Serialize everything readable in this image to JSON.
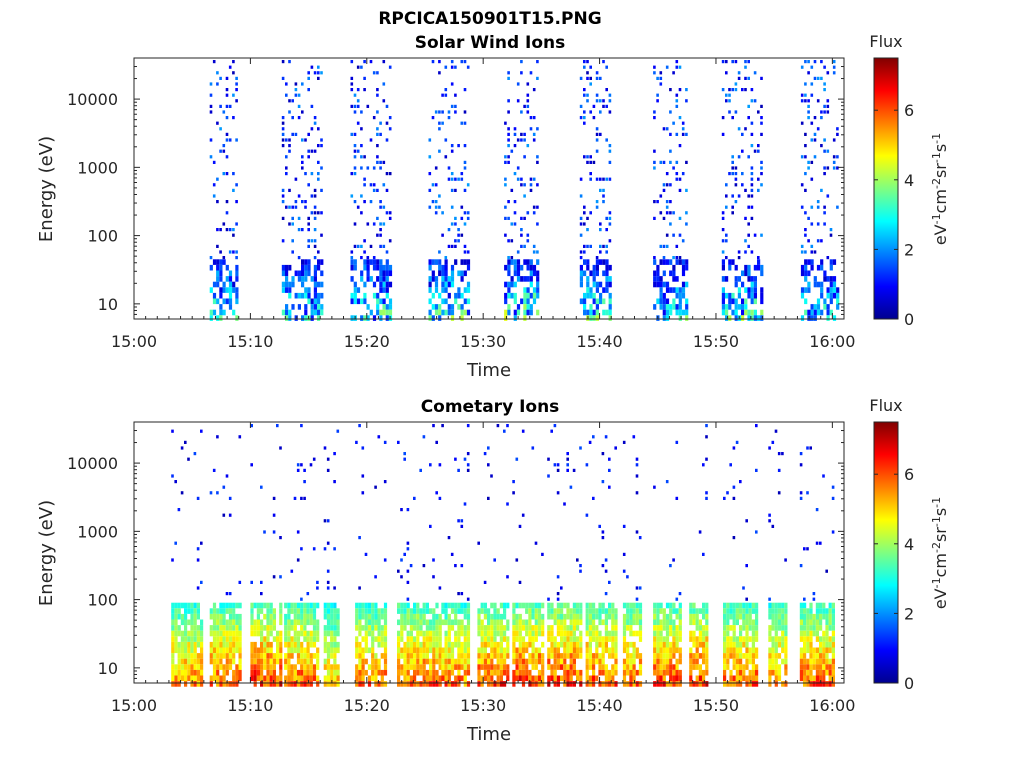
{
  "figure": {
    "title": "RPCICA150901T15.PNG"
  },
  "colorbar": {
    "label": "Flux",
    "unit_parts": {
      "a": "eV",
      "a_exp": "-1",
      "b": "cm",
      "b_exp": "-2",
      "c": "sr",
      "c_exp": "-1",
      "d": "s",
      "d_exp": "-1"
    },
    "ticks": [
      "0",
      "2",
      "4",
      "6"
    ],
    "range": [
      0,
      7.5
    ],
    "colormap": "jet"
  },
  "chart_data": [
    {
      "type": "heatmap",
      "title": "Solar Wind Ions",
      "xlabel": "Time",
      "ylabel": "Energy (eV)",
      "x_ticks": [
        "15:00",
        "15:10",
        "15:20",
        "15:30",
        "15:40",
        "15:50",
        "16:00"
      ],
      "x_range_min": [
        0,
        61
      ],
      "y_ticks": [
        "10",
        "100",
        "1000",
        "10000"
      ],
      "y_scale": "log",
      "y_range_eV": [
        6,
        40000
      ],
      "bursts": [
        {
          "t_min": 6.5,
          "width_min": 2.3,
          "low_flux_max": 4.5
        },
        {
          "t_min": 12.7,
          "width_min": 3.3,
          "low_flux_max": 4.0
        },
        {
          "t_min": 18.6,
          "width_min": 3.5,
          "low_flux_max": 4.5
        },
        {
          "t_min": 25.3,
          "width_min": 3.3,
          "low_flux_max": 4.5
        },
        {
          "t_min": 31.8,
          "width_min": 3.0,
          "low_flux_max": 5.0
        },
        {
          "t_min": 38.3,
          "width_min": 2.5,
          "low_flux_max": 4.5
        },
        {
          "t_min": 44.6,
          "width_min": 2.8,
          "low_flux_max": 4.2
        },
        {
          "t_min": 50.5,
          "width_min": 3.5,
          "low_flux_max": 4.5
        },
        {
          "t_min": 57.3,
          "width_min": 3.2,
          "low_flux_max": 4.0
        }
      ]
    },
    {
      "type": "heatmap",
      "title": "Cometary Ions",
      "xlabel": "Time",
      "ylabel": "Energy (eV)",
      "x_ticks": [
        "15:00",
        "15:10",
        "15:20",
        "15:30",
        "15:40",
        "15:50",
        "16:00"
      ],
      "x_range_min": [
        0,
        61
      ],
      "y_ticks": [
        "10",
        "100",
        "1000",
        "10000"
      ],
      "y_scale": "log",
      "y_range_eV": [
        6,
        40000
      ],
      "bursts": [
        {
          "t_min": 3.2,
          "width_min": 2.5,
          "low_flux_max": 6.5
        },
        {
          "t_min": 6.5,
          "width_min": 2.5,
          "low_flux_max": 6.8
        },
        {
          "t_min": 10.0,
          "width_min": 2.5,
          "low_flux_max": 7.2
        },
        {
          "t_min": 12.9,
          "width_min": 2.8,
          "low_flux_max": 6.8
        },
        {
          "t_min": 16.3,
          "width_min": 1.3,
          "low_flux_max": 6.0
        },
        {
          "t_min": 19.0,
          "width_min": 2.7,
          "low_flux_max": 6.6
        },
        {
          "t_min": 22.6,
          "width_min": 3.6,
          "low_flux_max": 6.8
        },
        {
          "t_min": 26.4,
          "width_min": 2.3,
          "low_flux_max": 6.6
        },
        {
          "t_min": 29.5,
          "width_min": 2.7,
          "low_flux_max": 7.0
        },
        {
          "t_min": 32.5,
          "width_min": 2.6,
          "low_flux_max": 7.2
        },
        {
          "t_min": 35.5,
          "width_min": 3.0,
          "low_flux_max": 7.2
        },
        {
          "t_min": 38.8,
          "width_min": 2.6,
          "low_flux_max": 7.0
        },
        {
          "t_min": 42.0,
          "width_min": 1.5,
          "low_flux_max": 6.8
        },
        {
          "t_min": 44.6,
          "width_min": 2.3,
          "low_flux_max": 7.0
        },
        {
          "t_min": 47.7,
          "width_min": 1.6,
          "low_flux_max": 7.2
        },
        {
          "t_min": 50.6,
          "width_min": 3.0,
          "low_flux_max": 6.8
        },
        {
          "t_min": 54.5,
          "width_min": 1.5,
          "low_flux_max": 6.5
        },
        {
          "t_min": 57.2,
          "width_min": 3.0,
          "low_flux_max": 6.8
        }
      ]
    }
  ]
}
